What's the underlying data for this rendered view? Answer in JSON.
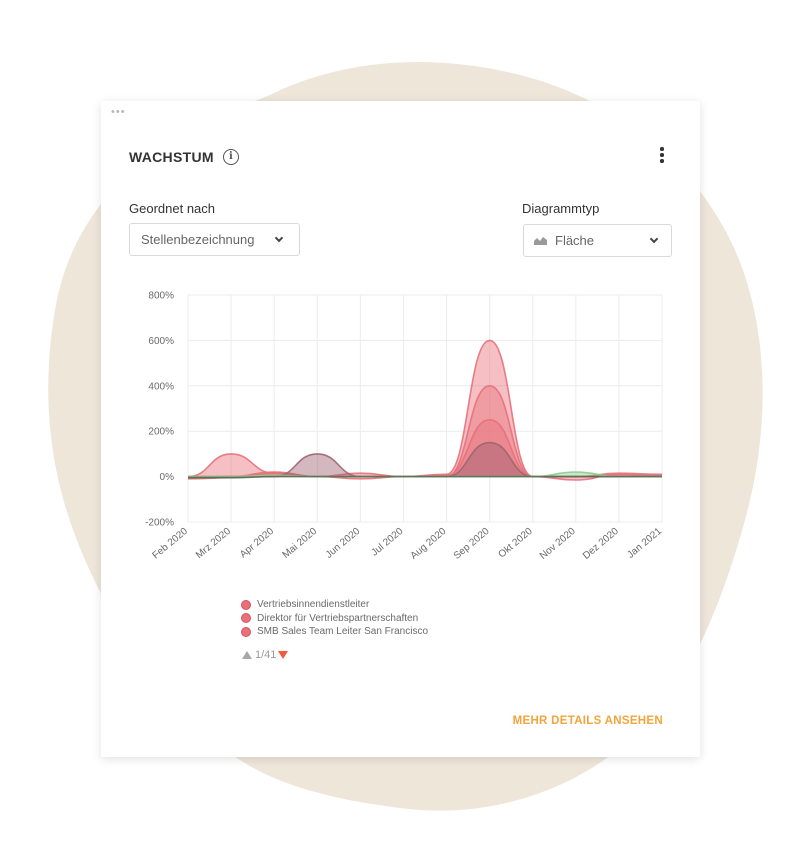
{
  "widget": {
    "title": "WACHSTUM",
    "window_dots": "•••"
  },
  "controls": {
    "sort_label": "Geordnet nach",
    "sort_value": "Stellenbezeichnung",
    "type_label": "Diagrammtyp",
    "type_value": "Fläche"
  },
  "chart_data": {
    "type": "area",
    "categories": [
      "Feb 2020",
      "Mrz 2020",
      "Apr 2020",
      "Mai 2020",
      "Jun 2020",
      "Jul 2020",
      "Aug 2020",
      "Sep 2020",
      "Okt 2020",
      "Nov 2020",
      "Dez 2020",
      "Jan 2021"
    ],
    "y_ticks": [
      "800%",
      "600%",
      "400%",
      "200%",
      "0%",
      "-200%"
    ],
    "ylim": [
      -200,
      800
    ],
    "grid": true,
    "series": [
      {
        "values": [
          0,
          100,
          15,
          0,
          15,
          0,
          10,
          600,
          0,
          0,
          15,
          10
        ],
        "color": "#e8707a"
      },
      {
        "values": [
          -5,
          0,
          20,
          0,
          0,
          0,
          0,
          400,
          0,
          0,
          0,
          0
        ],
        "color": "#e8707a"
      },
      {
        "values": [
          -10,
          -5,
          15,
          0,
          -10,
          0,
          5,
          250,
          0,
          -15,
          10,
          5
        ],
        "color": "#e8707a"
      },
      {
        "values": [
          0,
          0,
          0,
          100,
          0,
          0,
          0,
          150,
          0,
          0,
          0,
          0
        ],
        "color": "#9e6472"
      },
      {
        "values": [
          0,
          0,
          5,
          0,
          0,
          0,
          0,
          0,
          0,
          20,
          0,
          0
        ],
        "color": "#8dcf8d"
      },
      {
        "values": [
          -5,
          -5,
          0,
          0,
          0,
          0,
          0,
          0,
          0,
          0,
          0,
          0
        ],
        "color": "#5a6a55"
      }
    ]
  },
  "legend": {
    "items": [
      "Vertriebsinnendienstleiter",
      "Direktor für Vertriebspartnerschaften",
      "SMB Sales Team Leiter San Francisco"
    ],
    "color": "#e8707a"
  },
  "pager": {
    "text": "1/41"
  },
  "footer": {
    "link": "MEHR DETAILS ANSEHEN"
  },
  "colors": {
    "accent": "#f3a43b",
    "blob": "#efe6da",
    "pager_down": "#f05a3c"
  }
}
